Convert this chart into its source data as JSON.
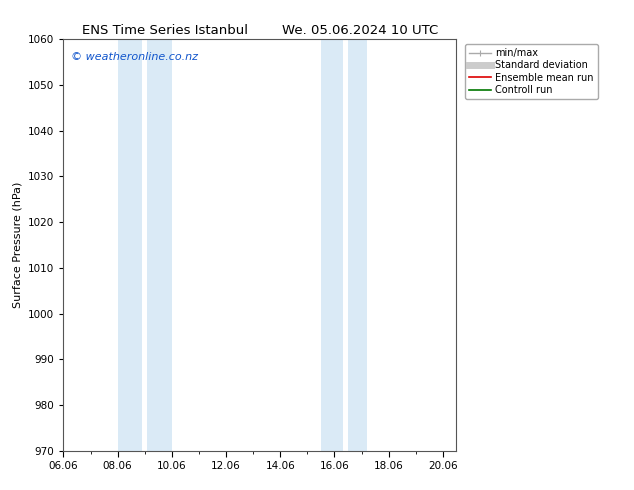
{
  "title_left": "ENS Time Series Istanbul",
  "title_right": "We. 05.06.2024 10 UTC",
  "ylabel": "Surface Pressure (hPa)",
  "ylim": [
    970,
    1060
  ],
  "yticks": [
    970,
    980,
    990,
    1000,
    1010,
    1020,
    1030,
    1040,
    1050,
    1060
  ],
  "xlim_days": [
    0.0,
    14.5
  ],
  "xtick_positions": [
    0,
    2,
    4,
    6,
    8,
    10,
    12,
    14
  ],
  "xtick_labels": [
    "06.06",
    "08.06",
    "10.06",
    "12.06",
    "14.06",
    "16.06",
    "18.06",
    "20.06"
  ],
  "minor_xtick_positions": [
    0,
    1,
    2,
    3,
    4,
    5,
    6,
    7,
    8,
    9,
    10,
    11,
    12,
    13,
    14
  ],
  "background_color": "#ffffff",
  "plot_bg_color": "#ffffff",
  "shaded_bands": [
    {
      "xmin": 2.0,
      "xmax": 2.9,
      "color": "#daeaf6"
    },
    {
      "xmin": 3.1,
      "xmax": 4.0,
      "color": "#daeaf6"
    },
    {
      "xmin": 9.5,
      "xmax": 10.3,
      "color": "#daeaf6"
    },
    {
      "xmin": 10.5,
      "xmax": 11.2,
      "color": "#daeaf6"
    }
  ],
  "watermark_text": "© weatheronline.co.nz",
  "watermark_color": "#1155cc",
  "legend_items": [
    {
      "label": "min/max",
      "color": "#aaaaaa",
      "linestyle": "-",
      "linewidth": 1.0,
      "type": "errorbar"
    },
    {
      "label": "Standard deviation",
      "color": "#cccccc",
      "linestyle": "-",
      "linewidth": 5,
      "type": "line"
    },
    {
      "label": "Ensemble mean run",
      "color": "#dd0000",
      "linestyle": "-",
      "linewidth": 1.2,
      "type": "line"
    },
    {
      "label": "Controll run",
      "color": "#007700",
      "linestyle": "-",
      "linewidth": 1.2,
      "type": "line"
    }
  ],
  "font_size_title": 9.5,
  "font_size_axis": 8,
  "font_size_tick": 7.5,
  "font_size_legend": 7,
  "font_size_watermark": 8
}
